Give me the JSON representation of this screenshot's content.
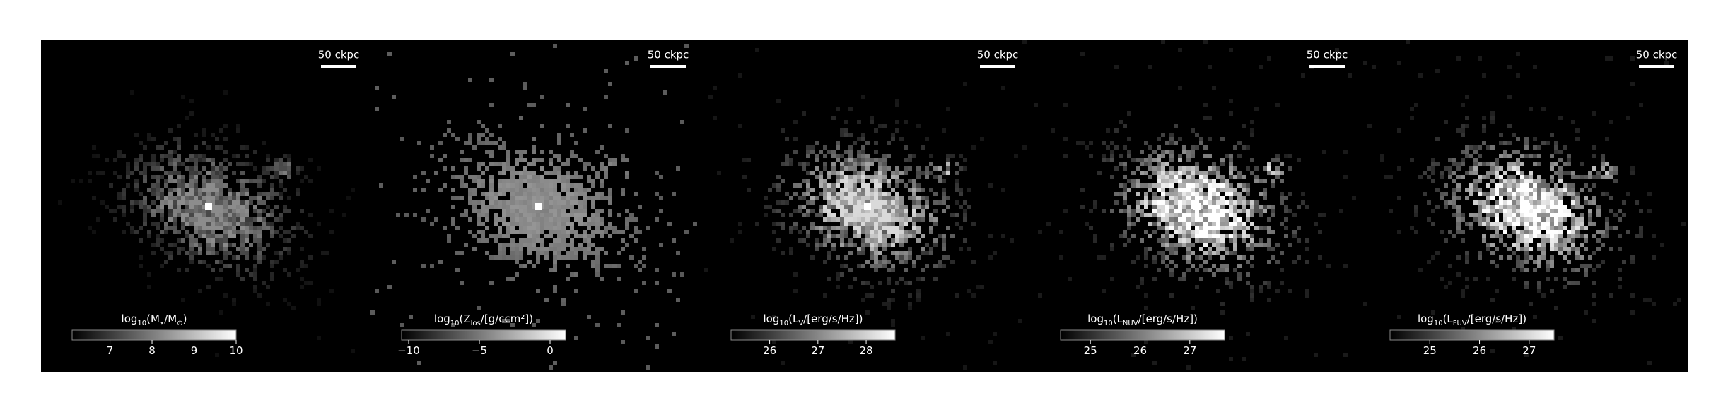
{
  "panels": [
    {
      "scale_label": "50 ckpc",
      "colorbar_label": [
        "log",
        "10",
        "(M",
        "⋆",
        "/M",
        "⊙",
        ")"
      ],
      "colorbar_range": [
        6.1,
        10
      ],
      "colorbar_ticks": [
        7,
        8,
        9,
        10
      ]
    },
    {
      "scale_label": "50 ckpc",
      "colorbar_label": [
        "log",
        "10",
        "(Z",
        "los",
        "/[g/ccm²])"
      ],
      "colorbar_range": [
        -10.5,
        1.1
      ],
      "colorbar_ticks": [
        {
          "value": -10,
          "label": "−10"
        },
        {
          "value": -5,
          "label": "−5"
        },
        0
      ]
    },
    {
      "scale_label": "50 ckpc",
      "colorbar_label": [
        "log",
        "10",
        "(L",
        "V",
        "/[erg/s/Hz])"
      ],
      "colorbar_range": [
        25.2,
        28.6
      ],
      "colorbar_ticks": [
        26,
        27,
        28
      ]
    },
    {
      "scale_label": "50 ckpc",
      "colorbar_label": [
        "log",
        "10",
        "(L",
        "NUV",
        "/[erg/s/Hz])"
      ],
      "colorbar_range": [
        24.4,
        27.7
      ],
      "colorbar_ticks": [
        25,
        26,
        27
      ]
    },
    {
      "scale_label": "50 ckpc",
      "colorbar_label": [
        "log",
        "10",
        "(L",
        "FUV",
        "/[erg/s/Hz])"
      ],
      "colorbar_range": [
        24.2,
        27.5
      ],
      "colorbar_ticks": [
        25,
        26,
        27
      ]
    }
  ]
}
